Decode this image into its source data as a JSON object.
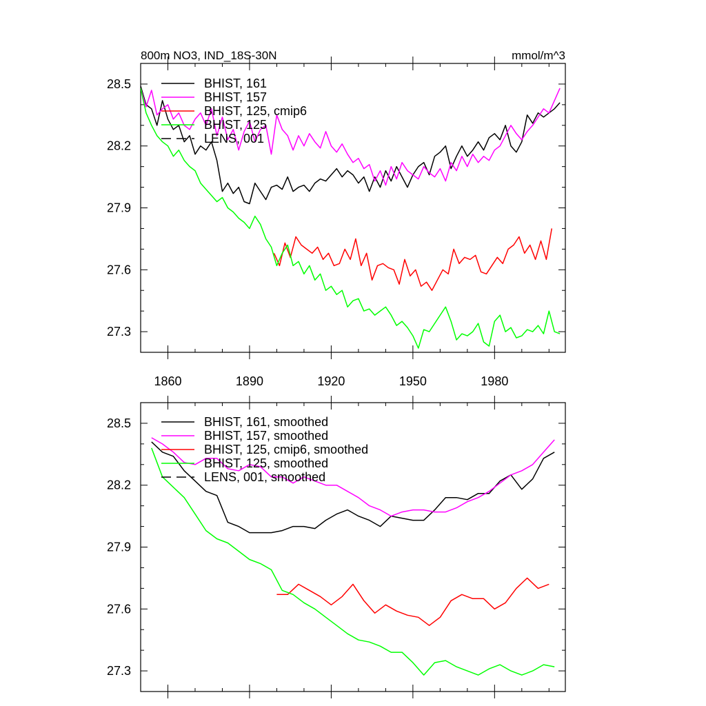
{
  "figure": {
    "title_left": "800m NO3, IND_18S-30N",
    "title_right": "mmol/m^3"
  },
  "chart_data": [
    {
      "type": "line",
      "title": "800m NO3, IND_18S-30N",
      "units": "mmol/m^3",
      "xlim": [
        1850,
        2006
      ],
      "ylim": [
        27.2,
        28.6
      ],
      "xticks": [
        "1860",
        "1890",
        "1920",
        "1950",
        "1980"
      ],
      "yticks": [
        "27.3",
        "27.6",
        "27.9",
        "28.2",
        "28.5"
      ],
      "legend_position": "top-left",
      "series": [
        {
          "name": "BHIST, 161",
          "color": "#000000",
          "dash": false,
          "x": [
            1850,
            1852,
            1854,
            1856,
            1858,
            1860,
            1862,
            1864,
            1866,
            1868,
            1870,
            1872,
            1874,
            1876,
            1878,
            1880,
            1882,
            1884,
            1886,
            1888,
            1890,
            1892,
            1894,
            1896,
            1898,
            1900,
            1902,
            1904,
            1906,
            1908,
            1910,
            1912,
            1914,
            1916,
            1918,
            1920,
            1922,
            1924,
            1926,
            1928,
            1930,
            1932,
            1934,
            1936,
            1938,
            1940,
            1942,
            1944,
            1946,
            1948,
            1950,
            1952,
            1954,
            1956,
            1958,
            1960,
            1962,
            1964,
            1966,
            1968,
            1970,
            1972,
            1974,
            1976,
            1978,
            1980,
            1982,
            1984,
            1986,
            1988,
            1990,
            1992,
            1994,
            1996,
            1998,
            2000,
            2002,
            2004
          ],
          "y": [
            28.49,
            28.4,
            28.38,
            28.3,
            28.42,
            28.33,
            28.28,
            28.3,
            28.22,
            28.25,
            28.16,
            28.2,
            28.18,
            28.22,
            28.13,
            27.98,
            28.02,
            27.97,
            28.0,
            27.93,
            27.92,
            28.02,
            27.98,
            27.94,
            28.0,
            28.01,
            27.99,
            28.05,
            27.98,
            28.0,
            28.01,
            27.98,
            28.02,
            28.04,
            28.03,
            28.06,
            28.09,
            28.05,
            28.08,
            28.06,
            28.02,
            28.05,
            27.98,
            28.05,
            28.0,
            28.08,
            28.03,
            28.1,
            28.05,
            28.0,
            28.06,
            28.1,
            28.12,
            28.06,
            28.15,
            28.17,
            28.2,
            28.09,
            28.15,
            28.2,
            28.15,
            28.18,
            28.22,
            28.18,
            28.24,
            28.26,
            28.23,
            28.3,
            28.2,
            28.17,
            28.22,
            28.35,
            28.31,
            28.36,
            28.34,
            28.36,
            28.38,
            28.41
          ]
        },
        {
          "name": "BHIST, 157",
          "color": "#ff00ff",
          "dash": false,
          "x": [
            1850,
            1852,
            1854,
            1856,
            1858,
            1860,
            1862,
            1864,
            1866,
            1868,
            1870,
            1872,
            1874,
            1876,
            1878,
            1880,
            1882,
            1884,
            1886,
            1888,
            1890,
            1892,
            1894,
            1896,
            1898,
            1900,
            1902,
            1904,
            1906,
            1908,
            1910,
            1912,
            1914,
            1916,
            1918,
            1920,
            1922,
            1924,
            1926,
            1928,
            1930,
            1932,
            1934,
            1936,
            1938,
            1940,
            1942,
            1944,
            1946,
            1948,
            1950,
            1952,
            1954,
            1956,
            1958,
            1960,
            1962,
            1964,
            1966,
            1968,
            1970,
            1972,
            1974,
            1976,
            1978,
            1980,
            1982,
            1984,
            1986,
            1988,
            1990,
            1992,
            1994,
            1996,
            1998,
            2000,
            2002,
            2004
          ],
          "y": [
            28.48,
            28.39,
            28.47,
            28.35,
            28.38,
            28.4,
            28.33,
            28.36,
            28.3,
            28.28,
            28.33,
            28.36,
            28.3,
            28.38,
            28.25,
            28.34,
            28.23,
            28.28,
            28.18,
            28.27,
            28.32,
            28.22,
            28.28,
            28.3,
            28.16,
            28.35,
            28.28,
            28.25,
            28.18,
            28.25,
            28.2,
            28.26,
            28.22,
            28.19,
            28.27,
            28.2,
            28.17,
            28.21,
            28.16,
            28.12,
            28.14,
            28.09,
            28.11,
            28.03,
            28.08,
            28.01,
            28.1,
            28.04,
            28.12,
            28.08,
            28.06,
            28.04,
            28.1,
            28.07,
            28.05,
            28.09,
            28.03,
            28.12,
            28.08,
            28.15,
            28.1,
            28.16,
            28.12,
            28.15,
            28.13,
            28.18,
            28.2,
            28.25,
            28.3,
            28.26,
            28.23,
            28.27,
            28.3,
            28.34,
            28.38,
            28.36,
            28.42,
            28.48
          ]
        },
        {
          "name": "BHIST, 125, cmip6",
          "color": "#ff0000",
          "dash": false,
          "x": [
            1899,
            1901,
            1903,
            1905,
            1907,
            1909,
            1911,
            1913,
            1915,
            1917,
            1919,
            1921,
            1923,
            1925,
            1927,
            1929,
            1931,
            1933,
            1935,
            1937,
            1939,
            1941,
            1943,
            1945,
            1947,
            1949,
            1951,
            1953,
            1955,
            1957,
            1959,
            1961,
            1963,
            1965,
            1967,
            1969,
            1971,
            1973,
            1975,
            1977,
            1979,
            1981,
            1983,
            1985,
            1987,
            1989,
            1991,
            1993,
            1995,
            1997,
            1999,
            2001
          ],
          "y": [
            27.68,
            27.62,
            27.73,
            27.66,
            27.76,
            27.72,
            27.7,
            27.68,
            27.71,
            27.65,
            27.68,
            27.62,
            27.63,
            27.7,
            27.65,
            27.75,
            27.62,
            27.68,
            27.55,
            27.62,
            27.63,
            27.61,
            27.6,
            27.53,
            27.65,
            27.57,
            27.6,
            27.52,
            27.54,
            27.5,
            27.55,
            27.6,
            27.58,
            27.7,
            27.63,
            27.66,
            27.65,
            27.67,
            27.59,
            27.58,
            27.62,
            27.66,
            27.63,
            27.7,
            27.72,
            27.76,
            27.68,
            27.72,
            27.65,
            27.74,
            27.65,
            27.8
          ]
        },
        {
          "name": "BHIST, 125",
          "color": "#00ff00",
          "dash": false,
          "x": [
            1850,
            1852,
            1854,
            1856,
            1858,
            1860,
            1862,
            1864,
            1866,
            1868,
            1870,
            1872,
            1874,
            1876,
            1878,
            1880,
            1882,
            1884,
            1886,
            1888,
            1890,
            1892,
            1894,
            1896,
            1898,
            1900,
            1902,
            1904,
            1906,
            1908,
            1910,
            1912,
            1914,
            1916,
            1918,
            1920,
            1922,
            1924,
            1926,
            1928,
            1930,
            1932,
            1934,
            1936,
            1938,
            1940,
            1942,
            1944,
            1946,
            1948,
            1950,
            1952,
            1954,
            1956,
            1958,
            1960,
            1962,
            1964,
            1966,
            1968,
            1970,
            1972,
            1974,
            1976,
            1978,
            1980,
            1982,
            1984,
            1986,
            1988,
            1990,
            1992,
            1994,
            1996,
            1998,
            2000,
            2002,
            2004
          ],
          "y": [
            28.48,
            28.36,
            28.3,
            28.25,
            28.22,
            28.2,
            28.15,
            28.18,
            28.13,
            28.1,
            28.08,
            28.02,
            27.99,
            27.96,
            27.93,
            27.95,
            27.9,
            27.88,
            27.85,
            27.83,
            27.8,
            27.86,
            27.82,
            27.75,
            27.71,
            27.62,
            27.68,
            27.72,
            27.62,
            27.64,
            27.58,
            27.62,
            27.55,
            27.58,
            27.5,
            27.52,
            27.48,
            27.5,
            27.42,
            27.45,
            27.46,
            27.4,
            27.41,
            27.38,
            27.4,
            27.42,
            27.38,
            27.33,
            27.35,
            27.32,
            27.28,
            27.22,
            27.31,
            27.3,
            27.34,
            27.38,
            27.42,
            27.35,
            27.26,
            27.29,
            27.28,
            27.3,
            27.34,
            27.25,
            27.23,
            27.35,
            27.38,
            27.3,
            27.32,
            27.27,
            27.28,
            27.31,
            27.3,
            27.33,
            27.29,
            27.4,
            27.3,
            27.29
          ]
        }
      ]
    },
    {
      "type": "line",
      "title": "",
      "xlim": [
        1850,
        2006
      ],
      "ylim": [
        27.2,
        28.6
      ],
      "xticks": [],
      "yticks": [
        "27.3",
        "27.6",
        "27.9",
        "28.2",
        "28.5"
      ],
      "legend_position": "top-left",
      "series": [
        {
          "name": "BHIST, 161, smoothed",
          "color": "#000000",
          "dash": false,
          "x": [
            1854,
            1858,
            1862,
            1866,
            1870,
            1874,
            1878,
            1882,
            1886,
            1890,
            1894,
            1898,
            1902,
            1906,
            1910,
            1914,
            1918,
            1922,
            1926,
            1930,
            1934,
            1938,
            1942,
            1946,
            1950,
            1954,
            1958,
            1962,
            1966,
            1970,
            1974,
            1978,
            1982,
            1986,
            1990,
            1994,
            1998,
            2002
          ],
          "y": [
            28.41,
            28.36,
            28.34,
            28.27,
            28.22,
            28.17,
            28.15,
            28.02,
            28.0,
            27.97,
            27.97,
            27.97,
            27.98,
            28.0,
            28.0,
            27.99,
            28.03,
            28.06,
            28.08,
            28.05,
            28.03,
            28.0,
            28.05,
            28.04,
            28.03,
            28.03,
            28.08,
            28.14,
            28.14,
            28.13,
            28.16,
            28.16,
            28.22,
            28.25,
            28.18,
            28.23,
            28.33,
            28.36
          ]
        },
        {
          "name": "BHIST, 157, smoothed",
          "color": "#ff00ff",
          "dash": false,
          "x": [
            1854,
            1858,
            1862,
            1866,
            1870,
            1874,
            1878,
            1882,
            1886,
            1890,
            1894,
            1898,
            1902,
            1906,
            1910,
            1914,
            1918,
            1922,
            1926,
            1930,
            1934,
            1938,
            1942,
            1946,
            1950,
            1954,
            1958,
            1962,
            1966,
            1970,
            1974,
            1978,
            1982,
            1986,
            1990,
            1994,
            1998,
            2002
          ],
          "y": [
            28.43,
            28.4,
            28.36,
            28.31,
            28.3,
            28.33,
            28.33,
            28.28,
            28.27,
            28.3,
            28.29,
            28.24,
            28.24,
            28.21,
            28.24,
            28.22,
            28.2,
            28.2,
            28.17,
            28.14,
            28.1,
            28.08,
            28.05,
            28.07,
            28.08,
            28.08,
            28.07,
            28.07,
            28.09,
            28.12,
            28.14,
            28.17,
            28.21,
            28.25,
            28.27,
            28.3,
            28.36,
            28.42
          ]
        },
        {
          "name": "BHIST, 125, cmip6, smoothed",
          "color": "#ff0000",
          "dash": false,
          "x": [
            1900,
            1904,
            1908,
            1912,
            1916,
            1920,
            1924,
            1928,
            1932,
            1936,
            1940,
            1944,
            1948,
            1952,
            1956,
            1960,
            1964,
            1968,
            1972,
            1976,
            1980,
            1984,
            1988,
            1992,
            1996,
            2000
          ],
          "y": [
            27.67,
            27.67,
            27.72,
            27.69,
            27.66,
            27.62,
            27.66,
            27.72,
            27.64,
            27.58,
            27.62,
            27.59,
            27.57,
            27.56,
            27.52,
            27.56,
            27.64,
            27.67,
            27.65,
            27.65,
            27.6,
            27.63,
            27.7,
            27.75,
            27.7,
            27.72
          ]
        },
        {
          "name": "BHIST, 125, smoothed",
          "color": "#00ff00",
          "dash": false,
          "x": [
            1854,
            1858,
            1862,
            1866,
            1870,
            1874,
            1878,
            1882,
            1886,
            1890,
            1894,
            1898,
            1902,
            1906,
            1910,
            1914,
            1918,
            1922,
            1926,
            1930,
            1934,
            1938,
            1942,
            1946,
            1950,
            1954,
            1958,
            1962,
            1966,
            1970,
            1974,
            1978,
            1982,
            1986,
            1990,
            1994,
            1998,
            2002
          ],
          "y": [
            28.38,
            28.24,
            28.19,
            28.14,
            28.06,
            27.98,
            27.94,
            27.92,
            27.88,
            27.84,
            27.82,
            27.79,
            27.69,
            27.67,
            27.63,
            27.6,
            27.56,
            27.52,
            27.48,
            27.45,
            27.44,
            27.42,
            27.39,
            27.39,
            27.34,
            27.28,
            27.34,
            27.35,
            27.32,
            27.3,
            27.28,
            27.31,
            27.33,
            27.3,
            27.28,
            27.3,
            27.33,
            27.32
          ]
        }
      ]
    }
  ],
  "legends": {
    "top": [
      {
        "label": "BHIST, 161",
        "color": "#000000",
        "dash": false
      },
      {
        "label": "BHIST, 157",
        "color": "#ff00ff",
        "dash": false
      },
      {
        "label": "BHIST, 125, cmip6",
        "color": "#ff0000",
        "dash": false
      },
      {
        "label": "BHIST, 125",
        "color": "#00ff00",
        "dash": false
      },
      {
        "label": "LENS, 001",
        "color": "#000000",
        "dash": true
      }
    ],
    "bottom": [
      {
        "label": "BHIST, 161, smoothed",
        "color": "#000000",
        "dash": false
      },
      {
        "label": "BHIST, 157, smoothed",
        "color": "#ff00ff",
        "dash": false
      },
      {
        "label": "BHIST, 125, cmip6, smoothed",
        "color": "#ff0000",
        "dash": false
      },
      {
        "label": "BHIST, 125, smoothed",
        "color": "#00ff00",
        "dash": false
      },
      {
        "label": "LENS, 001, smoothed",
        "color": "#000000",
        "dash": true
      }
    ]
  }
}
